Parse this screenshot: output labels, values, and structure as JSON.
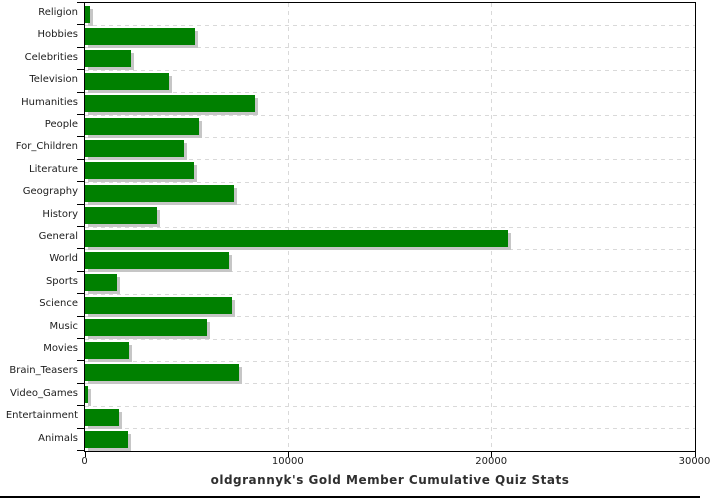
{
  "chart_data": {
    "type": "bar",
    "orientation": "horizontal",
    "title": "oldgrannyk's Gold Member Cumulative Quiz Stats",
    "categories": [
      "Religion",
      "Hobbies",
      "Celebrities",
      "Television",
      "Humanities",
      "People",
      "For_Children",
      "Literature",
      "Geography",
      "History",
      "General",
      "World",
      "Sports",
      "Science",
      "Music",
      "Movies",
      "Brain_Teasers",
      "Video_Games",
      "Entertainment",
      "Animals"
    ],
    "values": [
      250,
      5400,
      2250,
      4150,
      8350,
      5600,
      4850,
      5375,
      7350,
      3550,
      20800,
      7100,
      1550,
      7250,
      6000,
      2150,
      7550,
      150,
      1650,
      2100
    ],
    "xlabel": "",
    "ylabel": "",
    "xlim": [
      0,
      30000
    ],
    "xticks": [
      0,
      10000,
      20000,
      30000
    ],
    "xtick_labels": [
      "0",
      "10000",
      "20000",
      "30000"
    ],
    "grid": "dashed",
    "legend_position": "none",
    "bar_color": "#008000",
    "bar_shadow_color": "#c6c6c6",
    "grid_color": "#d9d9d9",
    "axis_color": "#000000",
    "text_color": "#1c1c1c"
  }
}
